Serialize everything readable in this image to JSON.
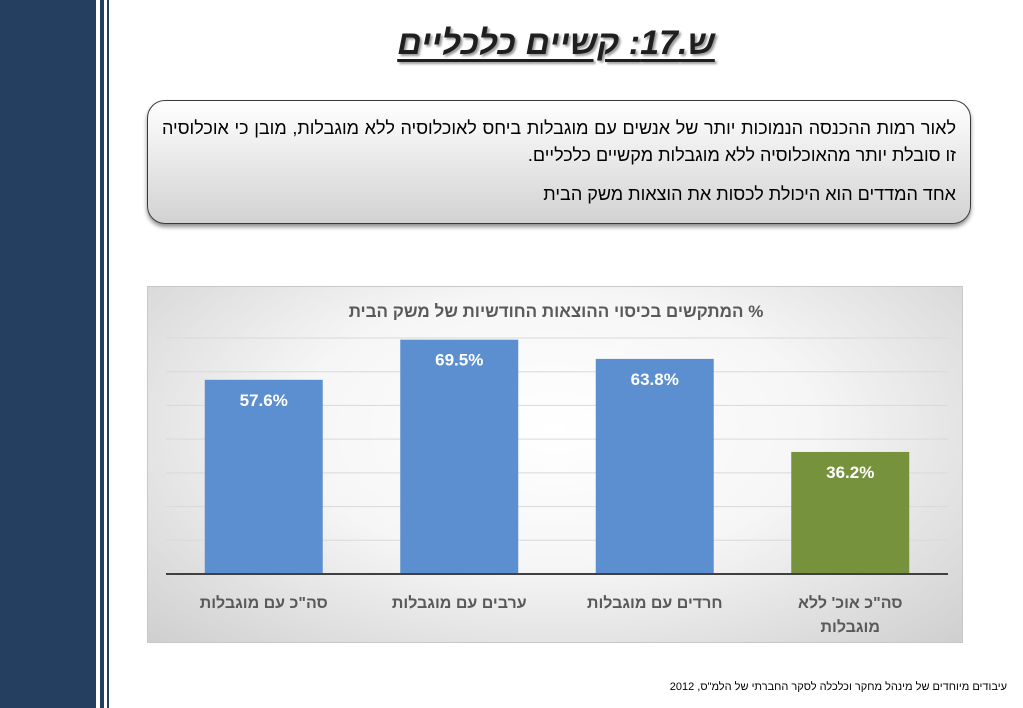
{
  "slide": {
    "title": "ש.17: קשיים כלכליים",
    "paragraph1": "לאור רמות ההכנסה הנמוכות יותר של אנשים עם מוגבלות ביחס לאוכלוסיה ללא מוגבלות, מובן כי אוכלוסיה זו סובלת יותר מהאוכלוסיה ללא מוגבלות מקשיים כלכליים.",
    "paragraph2": "אחד המדדים הוא היכולת לכסות את הוצאות משק הבית",
    "footnote": "עיבודים מיוחדים של מינהל מחקר וכלכלה לסקר החברתי של הלמ\"ס, 2012"
  },
  "colors": {
    "sidebar": "#243f60",
    "bar_blue": "#5b8fd0",
    "bar_green": "#76923c"
  },
  "chart_data": {
    "type": "bar",
    "title": "% המתקשים בכיסוי ההוצאות החודשיות של משק הבית",
    "categories": [
      "סה\"כ עם מוגבלות",
      "ערבים עם מוגבלות",
      "חרדים עם מוגבלות",
      "סה\"כ אוכ' ללא מוגבלות"
    ],
    "values": [
      57.6,
      69.5,
      63.8,
      36.2
    ],
    "data_labels": [
      "57.6%",
      "69.5%",
      "63.8%",
      "36.2%"
    ],
    "bar_colors": [
      "#5b8fd0",
      "#5b8fd0",
      "#5b8fd0",
      "#76923c"
    ],
    "ylim": [
      0,
      70
    ],
    "grid": true,
    "xlabel": "",
    "ylabel": ""
  }
}
